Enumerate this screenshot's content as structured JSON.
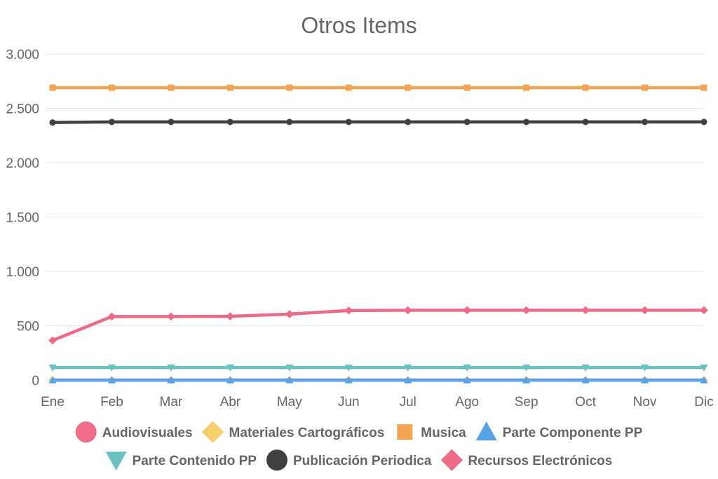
{
  "chart_data": {
    "type": "line",
    "title": "Otros Items",
    "xlabel": "",
    "ylabel": "",
    "ylim": [
      0,
      3000
    ],
    "yticks": [
      0,
      500,
      1000,
      1500,
      2000,
      2500,
      3000
    ],
    "ytick_labels": [
      "0",
      "500",
      "1.000",
      "1.500",
      "2.000",
      "2.500",
      "3.000"
    ],
    "categories": [
      "Ene",
      "Feb",
      "Mar",
      "Abr",
      "May",
      "Jun",
      "Jul",
      "Ago",
      "Sep",
      "Oct",
      "Nov",
      "Dic"
    ],
    "grid": true,
    "legend_position": "bottom",
    "series": [
      {
        "name": "Audiovisuales",
        "color": "#f06e8a",
        "marker": "circle",
        "values": [
          0,
          0,
          0,
          0,
          0,
          0,
          0,
          0,
          0,
          0,
          0,
          0
        ]
      },
      {
        "name": "Materiales Cartográficos",
        "color": "#f7cf6b",
        "marker": "diamond",
        "values": [
          0,
          0,
          0,
          0,
          0,
          0,
          0,
          0,
          0,
          0,
          0,
          0
        ]
      },
      {
        "name": "Musica",
        "color": "#f2a453",
        "marker": "square",
        "values": [
          2690,
          2690,
          2690,
          2690,
          2690,
          2690,
          2690,
          2690,
          2690,
          2690,
          2690,
          2690
        ]
      },
      {
        "name": "Parte Componente PP",
        "color": "#57a3e8",
        "marker": "triangle",
        "values": [
          0,
          0,
          0,
          0,
          0,
          0,
          0,
          0,
          0,
          0,
          0,
          0
        ]
      },
      {
        "name": "Parte Contenido PP",
        "color": "#6cc1c1",
        "marker": "triangle-down",
        "values": [
          115,
          115,
          115,
          115,
          115,
          115,
          115,
          115,
          115,
          115,
          115,
          115
        ]
      },
      {
        "name": "Publicación Periodica",
        "color": "#3f4042",
        "marker": "circle",
        "values": [
          2370,
          2375,
          2375,
          2375,
          2375,
          2375,
          2375,
          2375,
          2375,
          2375,
          2375,
          2375
        ]
      },
      {
        "name": "Recursos Electrónicos",
        "color": "#ed6b89",
        "marker": "diamond",
        "values": [
          365,
          585,
          585,
          587,
          607,
          640,
          643,
          643,
          643,
          643,
          643,
          643
        ]
      }
    ]
  }
}
